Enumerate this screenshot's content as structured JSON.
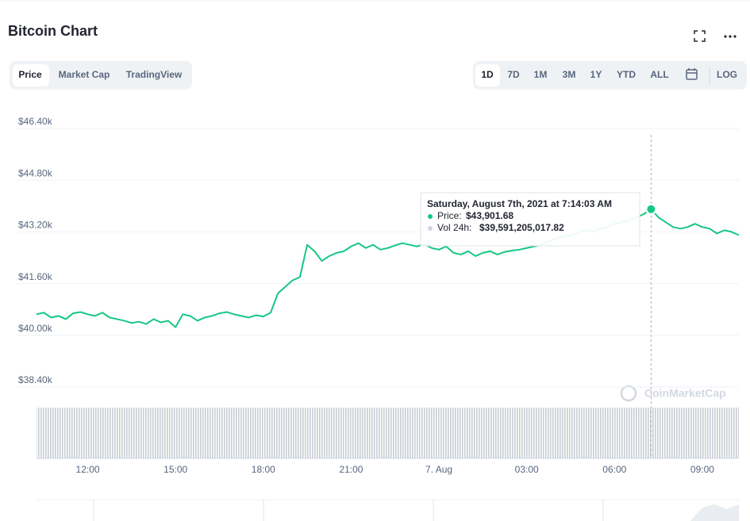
{
  "header": {
    "title": "Bitcoin Chart"
  },
  "tabs": [
    "Price",
    "Market Cap",
    "TradingView"
  ],
  "ranges": [
    "1D",
    "7D",
    "1M",
    "3M",
    "1Y",
    "YTD",
    "ALL",
    "LOG"
  ],
  "watermark": "CoinMarketCap",
  "tooltip": {
    "title": "Saturday, August 7th, 2021 at 7:14:03 AM",
    "price_label": "Price:",
    "price": "$43,901.68",
    "volume_label": "Vol 24h:",
    "volume": "$39,591,205,017.82"
  },
  "chart_data": {
    "type": "line",
    "color": "#16c784",
    "grid": true,
    "categories": [
      null,
      null,
      null,
      null,
      null,
      null,
      null,
      "12:00",
      null,
      null,
      null,
      null,
      null,
      null,
      null,
      null,
      null,
      null,
      null,
      "15:00",
      null,
      null,
      null,
      null,
      null,
      null,
      null,
      null,
      null,
      null,
      null,
      "18:00",
      null,
      null,
      null,
      null,
      null,
      null,
      null,
      null,
      null,
      null,
      null,
      "21:00",
      null,
      null,
      null,
      null,
      null,
      null,
      null,
      null,
      null,
      null,
      null,
      "7. Aug",
      null,
      null,
      null,
      null,
      null,
      null,
      null,
      null,
      null,
      null,
      null,
      "03:00",
      null,
      null,
      null,
      null,
      null,
      null,
      null,
      null,
      null,
      null,
      null,
      "06:00",
      null,
      null,
      null,
      null,
      null,
      null,
      null,
      null,
      null,
      null,
      null,
      "09:00",
      null,
      null,
      null,
      null,
      null
    ],
    "values": [
      40650,
      40700,
      40550,
      40600,
      40500,
      40680,
      40720,
      40650,
      40600,
      40700,
      40550,
      40500,
      40450,
      40380,
      40420,
      40350,
      40500,
      40400,
      40450,
      40250,
      40650,
      40600,
      40450,
      40550,
      40600,
      40680,
      40720,
      40650,
      40600,
      40550,
      40620,
      40580,
      40700,
      41300,
      41500,
      41700,
      41800,
      42800,
      42600,
      42300,
      42450,
      42550,
      42600,
      42750,
      42850,
      42700,
      42800,
      42650,
      42700,
      42780,
      42850,
      42800,
      42750,
      42820,
      42700,
      42650,
      42750,
      42550,
      42500,
      42600,
      42450,
      42550,
      42600,
      42500,
      42580,
      42620,
      42650,
      42700,
      42750,
      42800,
      42900,
      43000,
      43050,
      43100,
      43150,
      43250,
      43200,
      43300,
      43350,
      43450,
      43500,
      43550,
      43650,
      43750,
      43901.68,
      43650,
      43500,
      43350,
      43300,
      43350,
      43450,
      43350,
      43300,
      43150,
      43250,
      43200,
      43100
    ],
    "ylim": [
      38400,
      46400
    ],
    "yticks": [
      {
        "value": 38400,
        "label": "$38.40k"
      },
      {
        "value": 40000,
        "label": "$40.00k"
      },
      {
        "value": 41600,
        "label": "$41.60k"
      },
      {
        "value": 43200,
        "label": "$43.20k"
      },
      {
        "value": 44800,
        "label": "$44.80k"
      },
      {
        "value": 46400,
        "label": "$46.40k"
      }
    ]
  }
}
